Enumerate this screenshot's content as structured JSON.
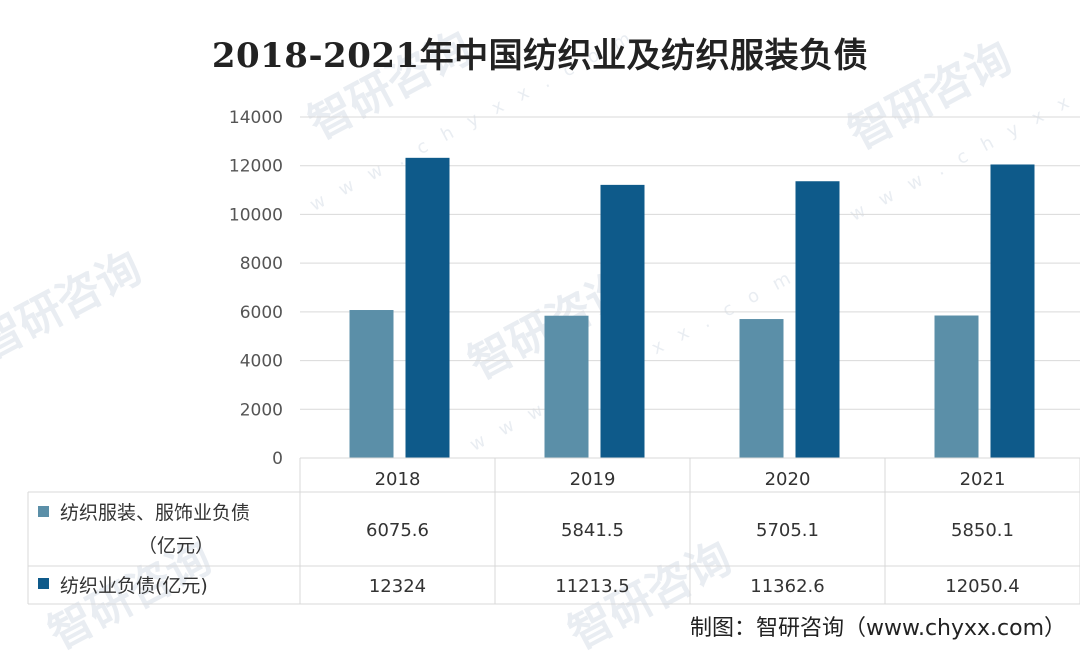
{
  "chart_data": {
    "type": "bar",
    "title": "2018-2021年中国纺织业及纺织服装负债",
    "categories": [
      "2018",
      "2019",
      "2020",
      "2021"
    ],
    "series": [
      {
        "name": "纺织服装、服饰业负债（亿元）",
        "values": [
          6075.6,
          5841.5,
          5705.1,
          5850.1
        ],
        "value_labels": [
          "6075.6",
          "5841.5",
          "5705.1",
          "5850.1"
        ],
        "color": "#5b8fa8"
      },
      {
        "name": "纺织业负债(亿元)",
        "values": [
          12324,
          11213.5,
          11362.6,
          12050.4
        ],
        "value_labels": [
          "12324",
          "11213.5",
          "11362.6",
          "12050.4"
        ],
        "color": "#0e5a8a"
      }
    ],
    "ylim": [
      0,
      14000
    ],
    "yticks": [
      "0",
      "2000",
      "4000",
      "6000",
      "8000",
      "10000",
      "12000",
      "14000"
    ],
    "grid": true,
    "legend": "data table below chart"
  },
  "legend_lines": [
    [
      "纺织服装、服饰业负债",
      "（亿元）"
    ],
    [
      "纺织业负债(亿元)"
    ]
  ],
  "source": "制图：智研咨询（www.chyxx.com）",
  "watermark": {
    "brand": "智研咨询",
    "url": "w w w . c h y x x . c o m"
  }
}
